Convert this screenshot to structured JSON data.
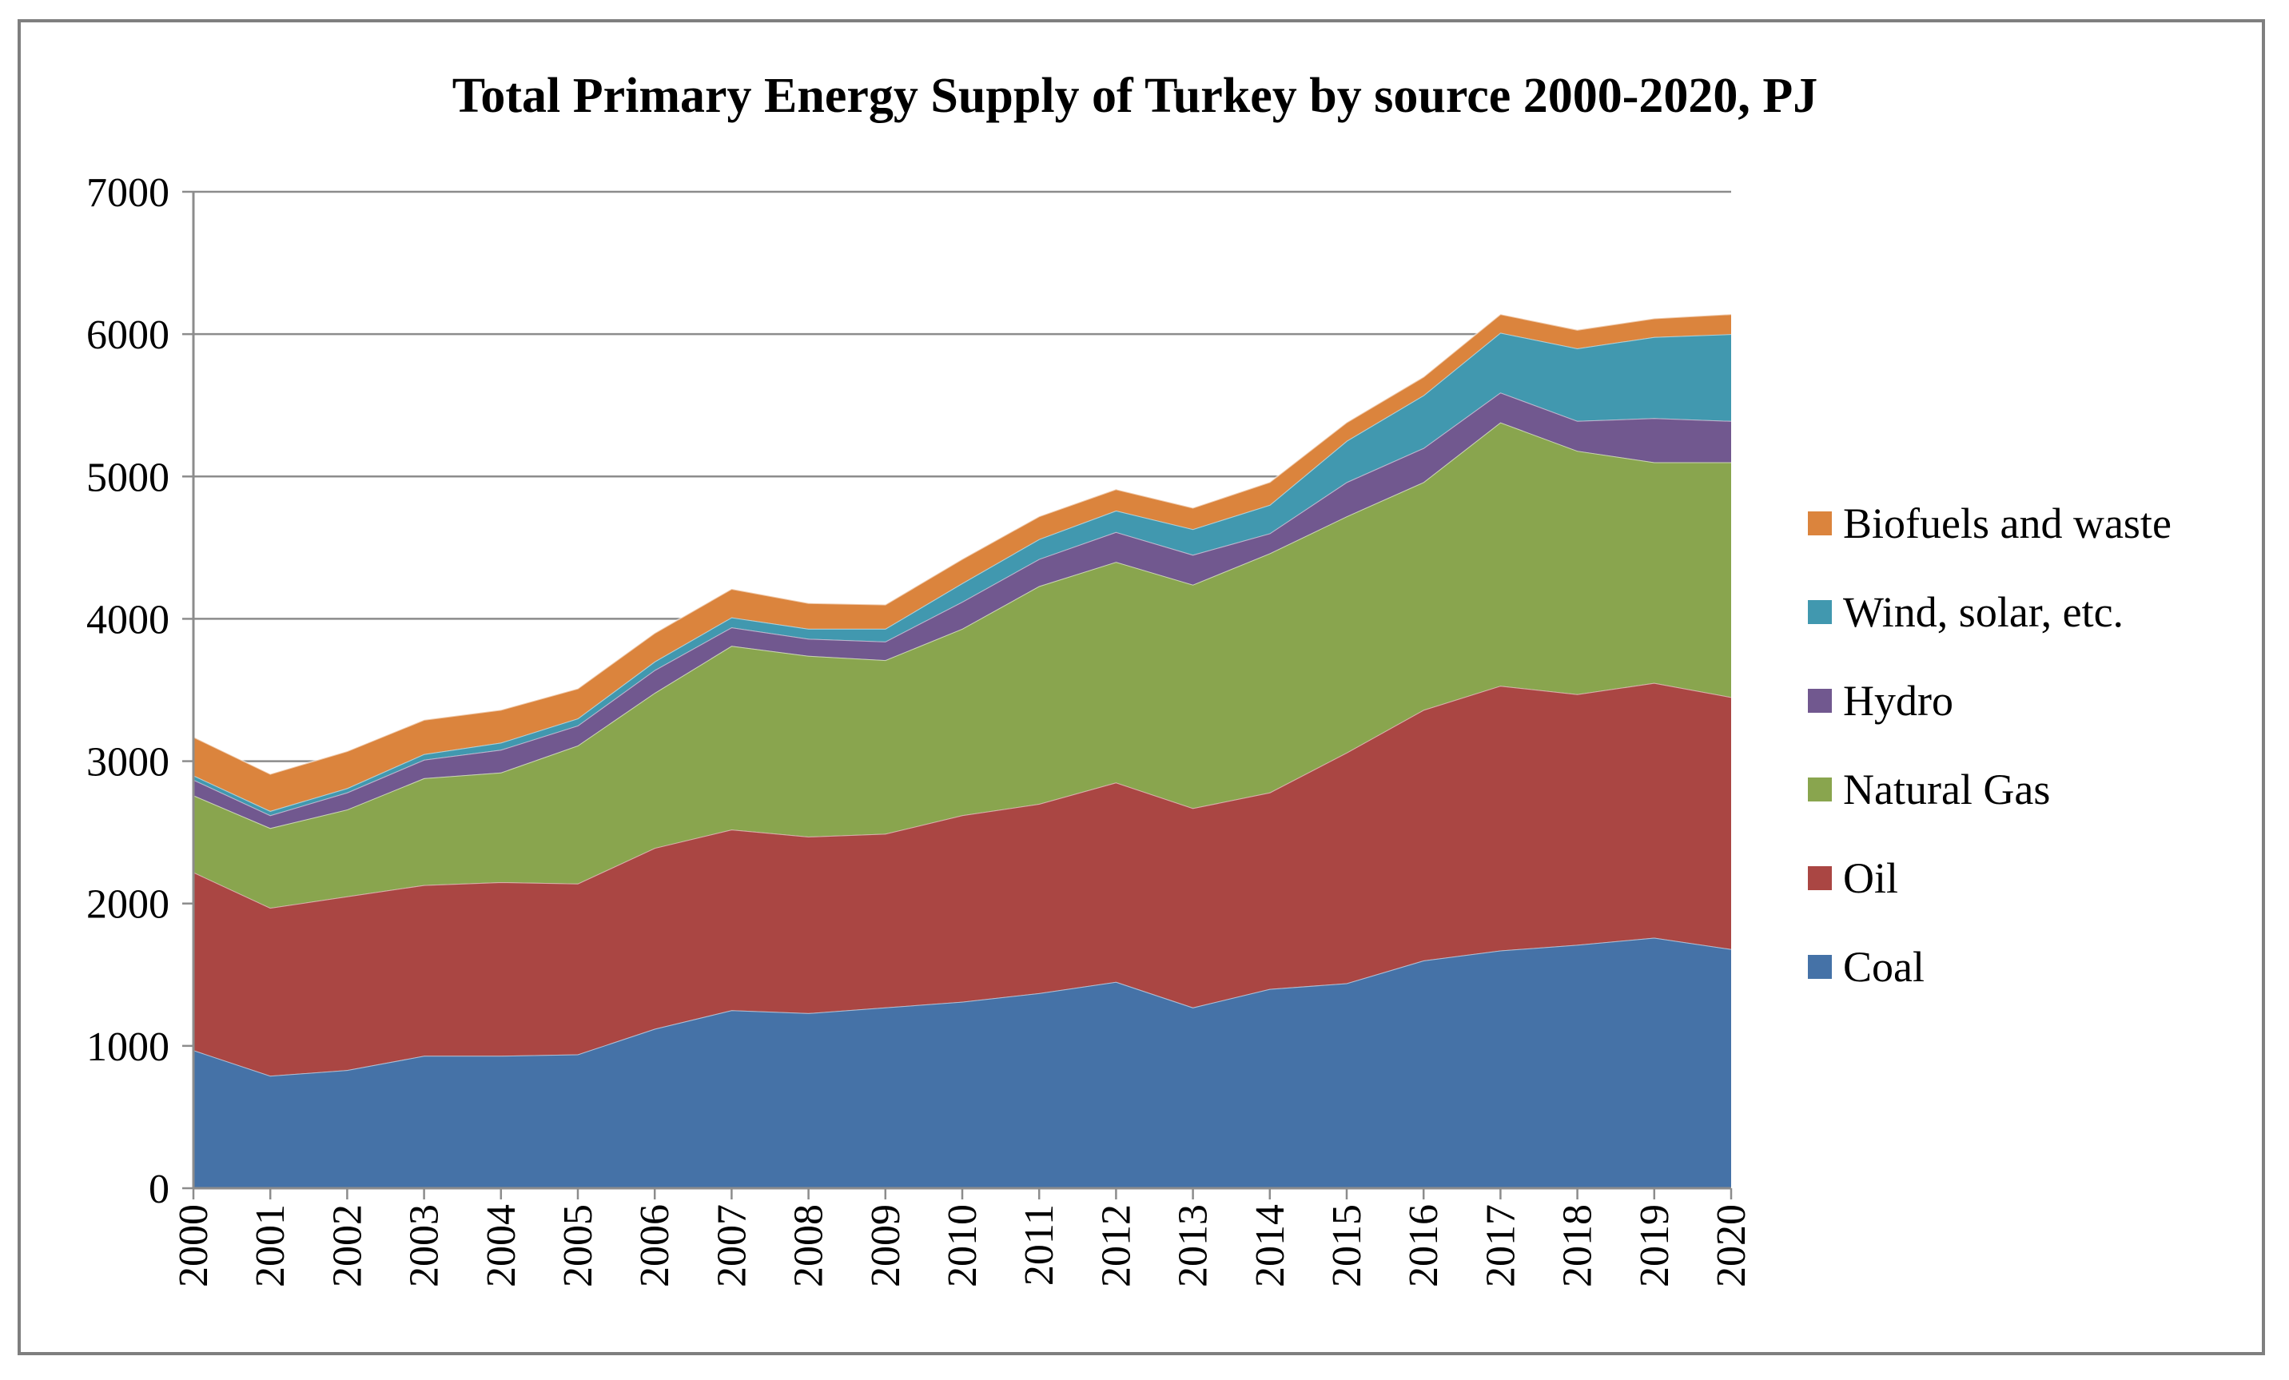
{
  "chart_data": {
    "type": "area",
    "stacked": true,
    "title": "Total Primary Energy Supply of Turkey by source 2000-2020, PJ",
    "xlabel": "",
    "ylabel": "",
    "x": [
      "2000",
      "2001",
      "2002",
      "2003",
      "2004",
      "2005",
      "2006",
      "2007",
      "2008",
      "2009",
      "2010",
      "2011",
      "2012",
      "2013",
      "2014",
      "2015",
      "2016",
      "2017",
      "2018",
      "2019",
      "2020"
    ],
    "yticks": [
      "0",
      "1000",
      "2000",
      "3000",
      "4000",
      "5000",
      "6000",
      "7000"
    ],
    "ylim": [
      0,
      7000
    ],
    "grid": true,
    "legend_position": "right",
    "series": [
      {
        "name": "Coal",
        "color": "#4572A7",
        "values": [
          970,
          790,
          830,
          930,
          930,
          940,
          1120,
          1250,
          1230,
          1270,
          1310,
          1370,
          1450,
          1270,
          1400,
          1440,
          1600,
          1670,
          1710,
          1760,
          1680
        ]
      },
      {
        "name": "Oil",
        "color": "#AA4643",
        "values": [
          1250,
          1180,
          1220,
          1200,
          1220,
          1200,
          1270,
          1270,
          1240,
          1220,
          1310,
          1330,
          1400,
          1400,
          1380,
          1620,
          1760,
          1860,
          1760,
          1790,
          1770
        ]
      },
      {
        "name": "Natural Gas",
        "color": "#89A54E",
        "values": [
          540,
          560,
          610,
          750,
          770,
          970,
          1090,
          1290,
          1270,
          1220,
          1310,
          1530,
          1550,
          1570,
          1680,
          1660,
          1600,
          1850,
          1710,
          1550,
          1650
        ]
      },
      {
        "name": "Hydro",
        "color": "#71588F",
        "values": [
          110,
          90,
          120,
          130,
          160,
          140,
          160,
          130,
          120,
          130,
          190,
          190,
          210,
          210,
          140,
          240,
          240,
          210,
          210,
          310,
          290
        ]
      },
      {
        "name": "Wind, solar, etc.",
        "color": "#4198AF",
        "values": [
          30,
          30,
          30,
          40,
          50,
          50,
          60,
          70,
          70,
          90,
          130,
          140,
          150,
          180,
          200,
          290,
          370,
          420,
          510,
          570,
          610
        ]
      },
      {
        "name": "Biofuels and waste",
        "color": "#DB843D",
        "values": [
          270,
          260,
          260,
          240,
          230,
          210,
          200,
          200,
          180,
          170,
          170,
          160,
          150,
          150,
          160,
          130,
          130,
          130,
          130,
          130,
          140
        ]
      }
    ]
  }
}
